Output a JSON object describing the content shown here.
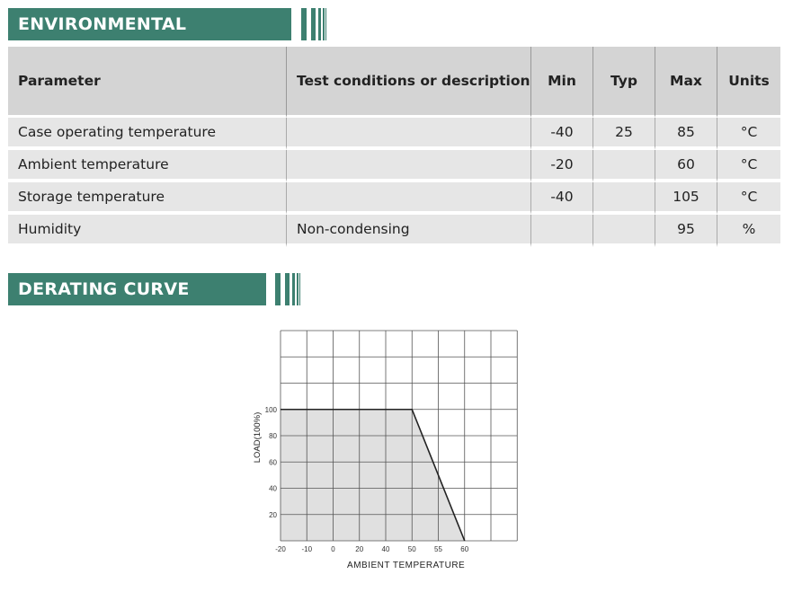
{
  "sections": {
    "environmental": "ENVIRONMENTAL",
    "derating": "DERATING CURVE"
  },
  "table": {
    "headers": [
      "Parameter",
      "Test conditions or  description",
      "Min",
      "Typ",
      "Max",
      "Units"
    ],
    "rows": [
      [
        "Case operating temperature",
        "",
        "-40",
        "25",
        "85",
        "°C"
      ],
      [
        "Ambient temperature",
        "",
        "-20",
        "",
        "60",
        "°C"
      ],
      [
        "Storage temperature",
        "",
        "-40",
        "",
        "105",
        "°C"
      ],
      [
        "Humidity",
        "Non-condensing",
        "",
        "",
        "95",
        "%"
      ]
    ]
  },
  "colors": {
    "accent": "#3d8070",
    "fill": "#e0e0e0"
  },
  "chart_data": {
    "type": "area",
    "title": "",
    "xlabel": "AMBIENT TEMPERATURE",
    "ylabel": "LOAD(100%)",
    "x_ticks": [
      "-20",
      "-10",
      "0",
      "20",
      "40",
      "50",
      "55",
      "60"
    ],
    "y_ticks": [
      "20",
      "40",
      "60",
      "80",
      "100"
    ],
    "points": [
      {
        "x": -20,
        "y": 100
      },
      {
        "x": 50,
        "y": 100
      },
      {
        "x": 60,
        "y": 0
      }
    ],
    "ylim": [
      0,
      160
    ],
    "grid": true
  }
}
